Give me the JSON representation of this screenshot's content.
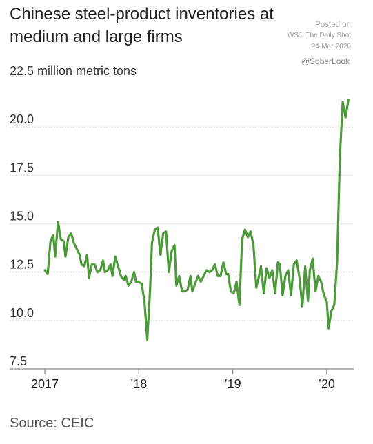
{
  "title": "Chinese steel-product inventories at medium and large firms",
  "attribution": {
    "posted_on": "Posted on",
    "publisher": "WSJ: The Daily Shot",
    "date": "24-Mar-2020",
    "handle": "@SoberLook"
  },
  "source": "Source: CEIC",
  "chart_data": {
    "type": "line",
    "ylabel": "million metric tons",
    "ylim": [
      7.5,
      22.5
    ],
    "y_ticks": [
      7.5,
      10.0,
      12.5,
      15.0,
      17.5,
      20.0,
      22.5
    ],
    "y_tick_labels": [
      "7.5",
      "10.0",
      "12.5",
      "15.0",
      "17.5",
      "20.0",
      "22.5 million metric tons"
    ],
    "x_ticks": [
      2017.0,
      2018.0,
      2019.0,
      2020.0
    ],
    "x_tick_labels": [
      "2017",
      "’18",
      "’19",
      "’20"
    ],
    "xlim": [
      2017.0,
      2020.25
    ],
    "grid": "horizontal",
    "line_color": "#4c9a3a",
    "series": [
      {
        "values": [
          [
            2017.0,
            12.6
          ],
          [
            2017.03,
            12.4
          ],
          [
            2017.06,
            14.1
          ],
          [
            2017.09,
            14.4
          ],
          [
            2017.11,
            13.3
          ],
          [
            2017.14,
            15.1
          ],
          [
            2017.17,
            14.2
          ],
          [
            2017.2,
            14.1
          ],
          [
            2017.22,
            13.3
          ],
          [
            2017.25,
            14.3
          ],
          [
            2017.28,
            14.5
          ],
          [
            2017.31,
            14.0
          ],
          [
            2017.34,
            13.7
          ],
          [
            2017.37,
            13.4
          ],
          [
            2017.39,
            12.9
          ],
          [
            2017.42,
            12.8
          ],
          [
            2017.45,
            13.4
          ],
          [
            2017.47,
            12.2
          ],
          [
            2017.5,
            12.9
          ],
          [
            2017.53,
            12.9
          ],
          [
            2017.56,
            12.5
          ],
          [
            2017.59,
            12.6
          ],
          [
            2017.62,
            13.1
          ],
          [
            2017.64,
            12.5
          ],
          [
            2017.67,
            12.6
          ],
          [
            2017.7,
            12.9
          ],
          [
            2017.72,
            12.3
          ],
          [
            2017.75,
            13.3
          ],
          [
            2017.78,
            12.8
          ],
          [
            2017.81,
            12.3
          ],
          [
            2017.84,
            12.1
          ],
          [
            2017.86,
            12.3
          ],
          [
            2017.89,
            11.8
          ],
          [
            2017.92,
            12.0
          ],
          [
            2017.95,
            12.5
          ],
          [
            2017.97,
            12.0
          ],
          [
            2018.0,
            12.0
          ],
          [
            2018.03,
            11.9
          ],
          [
            2018.06,
            11.0
          ],
          [
            2018.09,
            9.0
          ],
          [
            2018.12,
            11.6
          ],
          [
            2018.14,
            14.0
          ],
          [
            2018.17,
            14.7
          ],
          [
            2018.2,
            14.8
          ],
          [
            2018.23,
            13.4
          ],
          [
            2018.26,
            14.5
          ],
          [
            2018.29,
            14.6
          ],
          [
            2018.32,
            12.5
          ],
          [
            2018.35,
            13.6
          ],
          [
            2018.38,
            13.9
          ],
          [
            2018.4,
            11.8
          ],
          [
            2018.43,
            12.3
          ],
          [
            2018.46,
            11.5
          ],
          [
            2018.49,
            11.5
          ],
          [
            2018.52,
            11.6
          ],
          [
            2018.55,
            12.3
          ],
          [
            2018.57,
            11.5
          ],
          [
            2018.6,
            11.9
          ],
          [
            2018.63,
            12.3
          ],
          [
            2018.66,
            12.0
          ],
          [
            2018.69,
            12.3
          ],
          [
            2018.72,
            12.6
          ],
          [
            2018.75,
            12.5
          ],
          [
            2018.78,
            12.6
          ],
          [
            2018.81,
            12.9
          ],
          [
            2018.84,
            12.3
          ],
          [
            2018.87,
            12.3
          ],
          [
            2018.9,
            13.0
          ],
          [
            2018.93,
            12.4
          ],
          [
            2018.95,
            12.4
          ],
          [
            2018.98,
            11.5
          ],
          [
            2019.01,
            11.4
          ],
          [
            2019.04,
            12.0
          ],
          [
            2019.07,
            10.8
          ],
          [
            2019.1,
            14.2
          ],
          [
            2019.13,
            14.7
          ],
          [
            2019.16,
            14.3
          ],
          [
            2019.19,
            14.6
          ],
          [
            2019.22,
            13.9
          ],
          [
            2019.25,
            11.7
          ],
          [
            2019.28,
            12.3
          ],
          [
            2019.3,
            12.8
          ],
          [
            2019.33,
            11.4
          ],
          [
            2019.36,
            12.7
          ],
          [
            2019.39,
            12.2
          ],
          [
            2019.42,
            12.6
          ],
          [
            2019.45,
            11.4
          ],
          [
            2019.48,
            13.0
          ],
          [
            2019.5,
            12.9
          ],
          [
            2019.53,
            11.3
          ],
          [
            2019.56,
            12.3
          ],
          [
            2019.59,
            12.6
          ],
          [
            2019.62,
            11.3
          ],
          [
            2019.65,
            12.9
          ],
          [
            2019.68,
            13.1
          ],
          [
            2019.71,
            12.2
          ],
          [
            2019.74,
            10.7
          ],
          [
            2019.77,
            12.8
          ],
          [
            2019.8,
            11.0
          ],
          [
            2019.82,
            12.6
          ],
          [
            2019.85,
            13.2
          ],
          [
            2019.88,
            11.5
          ],
          [
            2019.91,
            12.3
          ],
          [
            2019.94,
            12.0
          ],
          [
            2019.97,
            11.3
          ],
          [
            2020.0,
            11.0
          ],
          [
            2020.02,
            9.6
          ],
          [
            2020.05,
            10.5
          ],
          [
            2020.08,
            10.8
          ],
          [
            2020.11,
            13.0
          ],
          [
            2020.14,
            18.5
          ],
          [
            2020.17,
            21.3
          ],
          [
            2020.2,
            20.5
          ],
          [
            2020.23,
            21.4
          ]
        ]
      }
    ]
  }
}
